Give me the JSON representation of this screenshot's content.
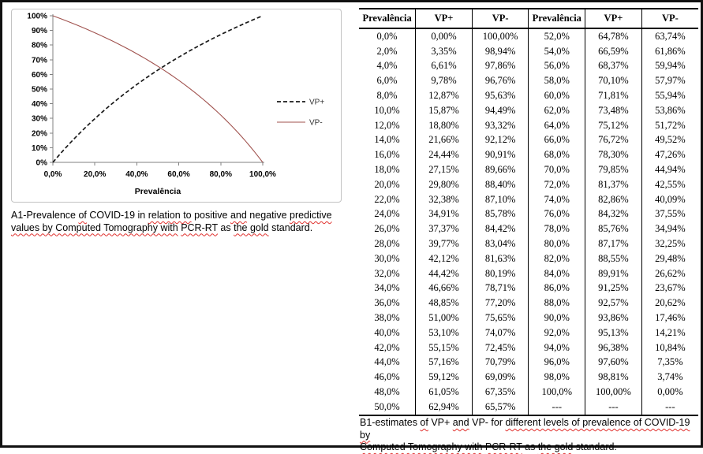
{
  "chart": {
    "y_ticks": [
      "100%",
      "90%",
      "80%",
      "70%",
      "60%",
      "50%",
      "40%",
      "30%",
      "20%",
      "10%",
      "0%"
    ],
    "x_ticks": [
      "0,0%",
      "20,0%",
      "40,0%",
      "60,0%",
      "80,0%",
      "100,0%"
    ],
    "x_title": "Prevalência",
    "legend": [
      {
        "label": "VP+",
        "style": "dashed",
        "color": "#1a1a1a"
      },
      {
        "label": "VP-",
        "style": "solid",
        "color": "#a0524e"
      }
    ]
  },
  "chart_data": {
    "type": "line",
    "title": "",
    "xlabel": "Prevalência",
    "ylabel": "",
    "xlim": [
      0,
      100
    ],
    "ylim": [
      0,
      100
    ],
    "grid": false,
    "legend_position": "right",
    "x": [
      0,
      2,
      4,
      6,
      8,
      10,
      12,
      14,
      16,
      18,
      20,
      22,
      24,
      26,
      28,
      30,
      32,
      34,
      36,
      38,
      40,
      42,
      44,
      46,
      48,
      50,
      52,
      54,
      56,
      58,
      60,
      62,
      64,
      66,
      68,
      70,
      72,
      74,
      76,
      78,
      80,
      82,
      84,
      86,
      88,
      90,
      92,
      94,
      96,
      98,
      100
    ],
    "series": [
      {
        "name": "VP+",
        "values": [
          0,
          3.35,
          6.61,
          9.78,
          12.87,
          15.87,
          18.8,
          21.66,
          24.44,
          27.15,
          29.8,
          32.38,
          34.91,
          37.37,
          39.77,
          42.12,
          44.42,
          46.66,
          48.85,
          51.0,
          53.1,
          55.15,
          57.16,
          59.12,
          61.05,
          62.94,
          64.78,
          66.59,
          68.37,
          70.1,
          71.81,
          73.48,
          75.12,
          76.72,
          78.3,
          79.85,
          81.37,
          82.86,
          84.32,
          85.76,
          87.17,
          88.55,
          89.91,
          91.25,
          92.57,
          93.86,
          95.13,
          96.38,
          97.6,
          98.81,
          100
        ]
      },
      {
        "name": "VP-",
        "values": [
          100,
          98.94,
          97.86,
          96.76,
          95.63,
          94.49,
          93.32,
          92.12,
          90.91,
          89.66,
          88.4,
          87.1,
          85.78,
          84.42,
          83.04,
          81.63,
          80.19,
          78.71,
          77.2,
          75.65,
          74.07,
          72.45,
          70.79,
          69.09,
          67.35,
          65.57,
          63.74,
          61.86,
          59.94,
          57.97,
          55.94,
          53.86,
          51.72,
          49.52,
          47.26,
          44.94,
          42.55,
          40.09,
          37.55,
          34.94,
          32.25,
          29.48,
          26.62,
          23.67,
          20.62,
          17.46,
          14.21,
          10.84,
          7.35,
          3.74,
          0
        ]
      }
    ]
  },
  "captions": {
    "a1": {
      "lines": [
        [
          {
            "t": "A1-Prevalence "
          },
          {
            "t": "of",
            "e": true
          },
          {
            "t": " COVID-19 in "
          },
          {
            "t": "relation to",
            "e": true
          },
          {
            "t": " positive "
          },
          {
            "t": "and",
            "e": true
          },
          {
            "t": " negative "
          },
          {
            "t": "predictive",
            "e": true
          }
        ],
        [
          {
            "t": "values by Computed Tomography with",
            "e": true
          },
          {
            "t": " "
          },
          {
            "t": "PCR-RT",
            "e": true
          },
          {
            "t": " as "
          },
          {
            "t": "the gold",
            "e": true
          },
          {
            "t": " standard."
          }
        ]
      ]
    },
    "b1": {
      "lines": [
        [
          {
            "t": "B1-estimates "
          },
          {
            "t": "of",
            "e": true
          },
          {
            "t": " VP+ "
          },
          {
            "t": "and",
            "e": true
          },
          {
            "t": " VP- for "
          },
          {
            "t": "different levels of prevalence of COVID-19",
            "e": true
          },
          {
            "t": " "
          },
          {
            "t": "by",
            "e": true
          }
        ],
        [
          {
            "t": "Computed Tomography with",
            "e": true
          },
          {
            "t": " "
          },
          {
            "t": "PCR-RT",
            "e": true
          },
          {
            "t": " as "
          },
          {
            "t": "the gold",
            "e": true
          },
          {
            "t": " standard."
          }
        ]
      ]
    }
  },
  "table": {
    "headers": [
      "Prevalência",
      "VP+",
      "VP-",
      "Prevalência",
      "VP+",
      "VP-"
    ],
    "rows": [
      [
        "0,0%",
        "0,00%",
        "100,00%",
        "52,0%",
        "64,78%",
        "63,74%"
      ],
      [
        "2,0%",
        "3,35%",
        "98,94%",
        "54,0%",
        "66,59%",
        "61,86%"
      ],
      [
        "4,0%",
        "6,61%",
        "97,86%",
        "56,0%",
        "68,37%",
        "59,94%"
      ],
      [
        "6,0%",
        "9,78%",
        "96,76%",
        "58,0%",
        "70,10%",
        "57,97%"
      ],
      [
        "8,0%",
        "12,87%",
        "95,63%",
        "60,0%",
        "71,81%",
        "55,94%"
      ],
      [
        "10,0%",
        "15,87%",
        "94,49%",
        "62,0%",
        "73,48%",
        "53,86%"
      ],
      [
        "12,0%",
        "18,80%",
        "93,32%",
        "64,0%",
        "75,12%",
        "51,72%"
      ],
      [
        "14,0%",
        "21,66%",
        "92,12%",
        "66,0%",
        "76,72%",
        "49,52%"
      ],
      [
        "16,0%",
        "24,44%",
        "90,91%",
        "68,0%",
        "78,30%",
        "47,26%"
      ],
      [
        "18,0%",
        "27,15%",
        "89,66%",
        "70,0%",
        "79,85%",
        "44,94%"
      ],
      [
        "20,0%",
        "29,80%",
        "88,40%",
        "72,0%",
        "81,37%",
        "42,55%"
      ],
      [
        "22,0%",
        "32,38%",
        "87,10%",
        "74,0%",
        "82,86%",
        "40,09%"
      ],
      [
        "24,0%",
        "34,91%",
        "85,78%",
        "76,0%",
        "84,32%",
        "37,55%"
      ],
      [
        "26,0%",
        "37,37%",
        "84,42%",
        "78,0%",
        "85,76%",
        "34,94%"
      ],
      [
        "28,0%",
        "39,77%",
        "83,04%",
        "80,0%",
        "87,17%",
        "32,25%"
      ],
      [
        "30,0%",
        "42,12%",
        "81,63%",
        "82,0%",
        "88,55%",
        "29,48%"
      ],
      [
        "32,0%",
        "44,42%",
        "80,19%",
        "84,0%",
        "89,91%",
        "26,62%"
      ],
      [
        "34,0%",
        "46,66%",
        "78,71%",
        "86,0%",
        "91,25%",
        "23,67%"
      ],
      [
        "36,0%",
        "48,85%",
        "77,20%",
        "88,0%",
        "92,57%",
        "20,62%"
      ],
      [
        "38,0%",
        "51,00%",
        "75,65%",
        "90,0%",
        "93,86%",
        "17,46%"
      ],
      [
        "40,0%",
        "53,10%",
        "74,07%",
        "92,0%",
        "95,13%",
        "14,21%"
      ],
      [
        "42,0%",
        "55,15%",
        "72,45%",
        "94,0%",
        "96,38%",
        "10,84%"
      ],
      [
        "44,0%",
        "57,16%",
        "70,79%",
        "96,0%",
        "97,60%",
        "7,35%"
      ],
      [
        "46,0%",
        "59,12%",
        "69,09%",
        "98,0%",
        "98,81%",
        "3,74%"
      ],
      [
        "48,0%",
        "61,05%",
        "67,35%",
        "100,0%",
        "100,00%",
        "0,00%"
      ],
      [
        "50,0%",
        "62,94%",
        "65,57%",
        "---",
        "---",
        "---"
      ]
    ]
  }
}
